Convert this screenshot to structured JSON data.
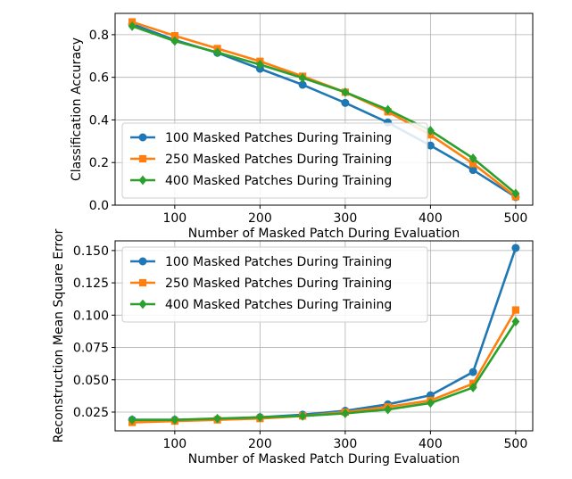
{
  "chart_data": [
    {
      "type": "line",
      "xlabel": "Number of Masked Patch During Evaluation",
      "ylabel": "Classification Accuracy",
      "xlim": [
        30,
        520
      ],
      "ylim": [
        0.0,
        0.9
      ],
      "xticks": [
        100,
        200,
        300,
        400,
        500
      ],
      "yticks": [
        0.0,
        0.2,
        0.4,
        0.6,
        0.8
      ],
      "ytick_labels": [
        "0.0",
        "0.2",
        "0.4",
        "0.6",
        "0.8"
      ],
      "grid": true,
      "legend_position": "lower-left",
      "x": [
        50,
        100,
        150,
        200,
        250,
        300,
        350,
        400,
        450,
        500
      ],
      "series": [
        {
          "name": "100 Masked Patches During Training",
          "color": "#1f77b4",
          "marker": "circle",
          "values": [
            0.85,
            0.775,
            0.715,
            0.64,
            0.565,
            0.48,
            0.388,
            0.28,
            0.165,
            0.038
          ]
        },
        {
          "name": "250 Masked Patches During Training",
          "color": "#ff7f0e",
          "marker": "square",
          "values": [
            0.86,
            0.795,
            0.735,
            0.675,
            0.605,
            0.53,
            0.438,
            0.33,
            0.195,
            0.04
          ]
        },
        {
          "name": "400 Masked Patches During Training",
          "color": "#2ca02c",
          "marker": "diamond",
          "values": [
            0.84,
            0.77,
            0.717,
            0.66,
            0.597,
            0.53,
            0.448,
            0.35,
            0.22,
            0.055
          ]
        }
      ]
    },
    {
      "type": "line",
      "xlabel": "Number of Masked Patch During Evaluation",
      "ylabel": "Reconstruction Mean Square Error",
      "xlim": [
        30,
        520
      ],
      "ylim": [
        0.0105,
        0.1575
      ],
      "xticks": [
        100,
        200,
        300,
        400,
        500
      ],
      "yticks": [
        0.025,
        0.05,
        0.075,
        0.1,
        0.125,
        0.15
      ],
      "ytick_labels": [
        "0.025",
        "0.050",
        "0.075",
        "0.100",
        "0.125",
        "0.150"
      ],
      "grid": true,
      "legend_position": "upper-left",
      "x": [
        50,
        100,
        150,
        200,
        250,
        300,
        350,
        400,
        450,
        500
      ],
      "series": [
        {
          "name": "100 Masked Patches During Training",
          "color": "#1f77b4",
          "marker": "circle",
          "values": [
            0.019,
            0.019,
            0.0195,
            0.021,
            0.023,
            0.026,
            0.031,
            0.038,
            0.056,
            0.152
          ]
        },
        {
          "name": "250 Masked Patches During Training",
          "color": "#ff7f0e",
          "marker": "square",
          "values": [
            0.017,
            0.018,
            0.019,
            0.02,
            0.022,
            0.025,
            0.029,
            0.034,
            0.047,
            0.104
          ]
        },
        {
          "name": "400 Masked Patches During Training",
          "color": "#2ca02c",
          "marker": "diamond",
          "values": [
            0.019,
            0.019,
            0.02,
            0.021,
            0.022,
            0.024,
            0.027,
            0.032,
            0.044,
            0.095
          ]
        }
      ]
    }
  ]
}
